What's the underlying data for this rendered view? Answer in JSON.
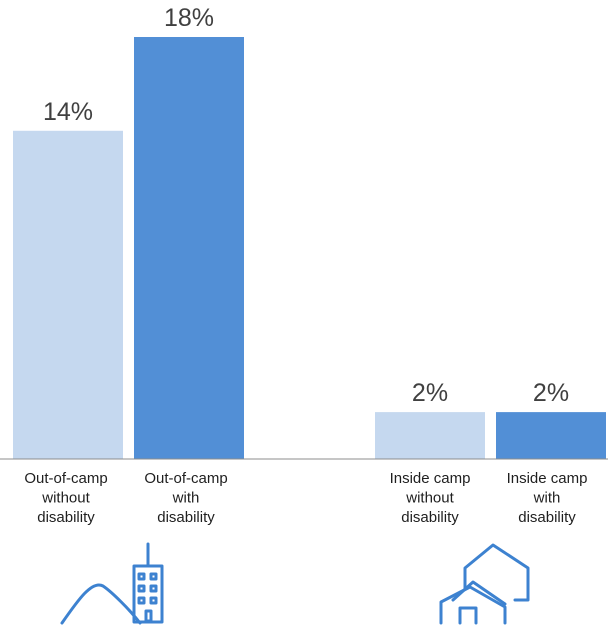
{
  "chart_data": {
    "type": "bar",
    "categories": [
      [
        "Out-of-camp",
        "without",
        "disability"
      ],
      [
        "Out-of-camp",
        "with",
        "disability"
      ],
      [
        "Inside camp",
        "without",
        "disability"
      ],
      [
        "Inside camp",
        "with",
        "disability"
      ]
    ],
    "values": [
      14,
      18,
      2,
      2
    ],
    "value_labels": [
      "14%",
      "18%",
      "2%",
      "2%"
    ],
    "unit": "%",
    "ylim": [
      0,
      18
    ],
    "grid": false,
    "legend": "none",
    "colors": [
      "#c5d8ef",
      "#528fd6",
      "#c5d8ef",
      "#528fd6"
    ],
    "axis_color": "#8c8c8c"
  },
  "icons": {
    "left_group": "mountain-and-building-icon",
    "right_group": "camp-tents-icon",
    "stroke_color": "#3d82d0"
  }
}
